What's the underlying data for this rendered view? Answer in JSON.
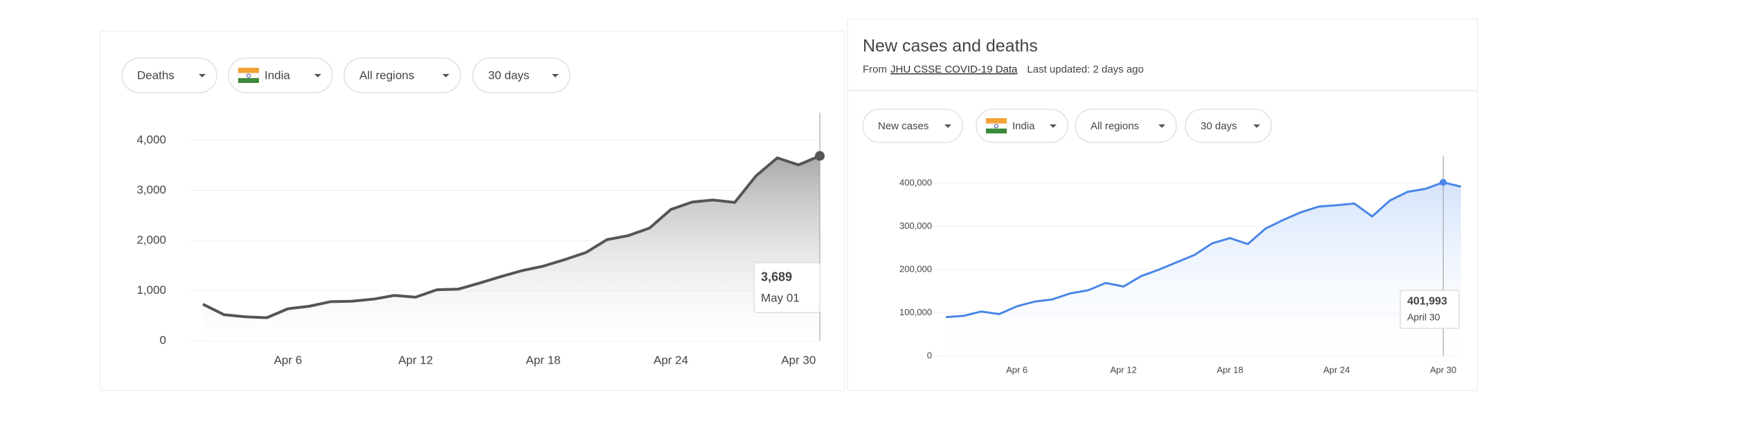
{
  "chart_data": [
    {
      "type": "area",
      "controls": [
        "Deaths",
        "India",
        "All regions",
        "30 days"
      ],
      "categories": [
        null,
        null,
        null,
        null,
        "Apr 6",
        null,
        null,
        null,
        null,
        null,
        "Apr 12",
        null,
        null,
        null,
        null,
        null,
        "Apr 18",
        null,
        null,
        null,
        null,
        null,
        "Apr 24",
        null,
        null,
        null,
        null,
        null,
        "Apr 30",
        null
      ],
      "values": [
        730,
        520,
        480,
        460,
        640,
        690,
        780,
        790,
        830,
        905,
        870,
        1020,
        1030,
        1150,
        1280,
        1400,
        1490,
        1620,
        1760,
        2020,
        2100,
        2250,
        2620,
        2770,
        2810,
        2760,
        3290,
        3650,
        3510,
        3689
      ],
      "color": "#555555",
      "ylim": [
        0,
        4000
      ],
      "yticks": [
        0,
        {
          "value": 1000,
          "label": "1,000"
        },
        {
          "value": 2000,
          "label": "2,000"
        },
        {
          "value": 3000,
          "label": "3,000"
        },
        {
          "value": 4000,
          "label": "4,000"
        }
      ],
      "grid": true,
      "tooltip": {
        "value": 3689,
        "label": "3,689",
        "date": "May 01"
      }
    },
    {
      "type": "area",
      "title": "New cases and deaths",
      "source_prefix": "From",
      "source_link": "JHU CSSE COVID-19 Data",
      "updated": "Last updated: 2 days ago",
      "controls": [
        "New cases",
        "India",
        "All regions",
        "30 days"
      ],
      "categories": [
        null,
        null,
        null,
        null,
        "Apr 6",
        null,
        null,
        null,
        null,
        null,
        "Apr 12",
        null,
        null,
        null,
        null,
        null,
        "Apr 18",
        null,
        null,
        null,
        null,
        null,
        "Apr 24",
        null,
        null,
        null,
        null,
        null,
        "Apr 30",
        null
      ],
      "values": [
        90000,
        93000,
        103000,
        97000,
        115000,
        126000,
        131000,
        145000,
        152000,
        169000,
        161000,
        185000,
        200000,
        217000,
        234000,
        261000,
        273000,
        259000,
        295000,
        315000,
        333000,
        346000,
        349000,
        353000,
        323000,
        360000,
        380000,
        387000,
        401993,
        392000
      ],
      "color": "#4a86e8",
      "ylim": [
        0,
        400000
      ],
      "yticks": [
        0,
        {
          "value": 100000,
          "label": "100,000"
        },
        {
          "value": 200000,
          "label": "200,000"
        },
        {
          "value": 300000,
          "label": "300,000"
        },
        {
          "value": 400000,
          "label": "400,000"
        }
      ],
      "grid": true,
      "tooltip": {
        "value": 401993,
        "label": "401,993",
        "date": "April 30"
      }
    }
  ]
}
